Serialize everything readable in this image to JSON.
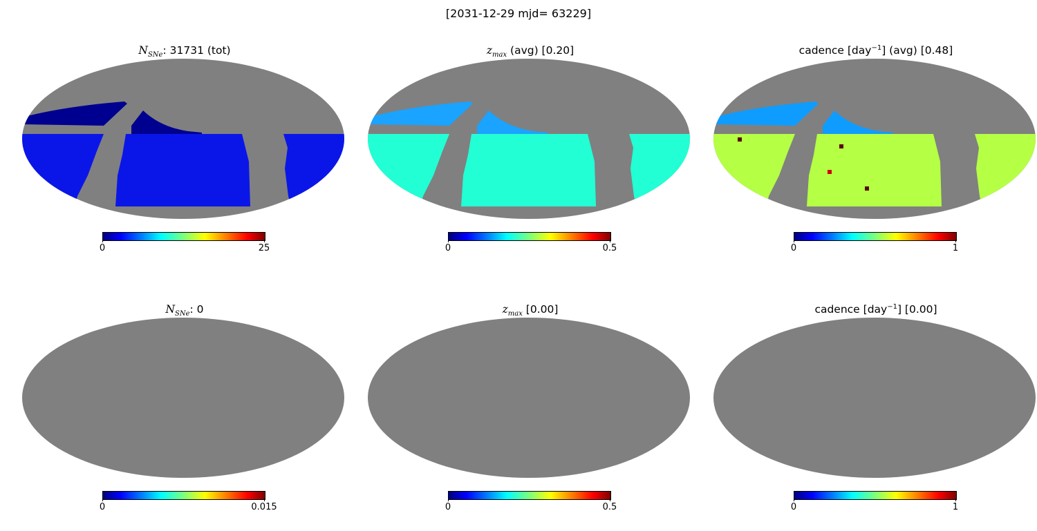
{
  "figure": {
    "suptitle": "[2031-12-29  mjd= 63229]"
  },
  "panels": [
    {
      "id": "nsn_tot",
      "title_main": "N",
      "title_sub": "SNe",
      "title_rest": ": 31731 (tot)",
      "cmin": "0",
      "cmax": "25",
      "has_data": true
    },
    {
      "id": "zmax_avg",
      "title_main": "z",
      "title_sub": "max",
      "title_rest": " (avg) [0.20]",
      "cmin": "0",
      "cmax": "0.5",
      "has_data": true
    },
    {
      "id": "cadence_avg",
      "title_pre": "cadence [day",
      "title_sup": "−1",
      "title_rest": "] (avg) [0.48]",
      "cmin": "0",
      "cmax": "1",
      "has_data": true
    },
    {
      "id": "nsn",
      "title_main": "N",
      "title_sub": "SNe",
      "title_rest": ": 0",
      "cmin": "0",
      "cmax": "0.015",
      "has_data": false
    },
    {
      "id": "zmax",
      "title_main": "z",
      "title_sub": "max",
      "title_rest": " [0.00]",
      "cmin": "0",
      "cmax": "0.5",
      "has_data": false
    },
    {
      "id": "cadence",
      "title_pre": "cadence [day",
      "title_sup": "−1",
      "title_rest": "] [0.00]",
      "cmin": "0",
      "cmax": "1",
      "has_data": false
    }
  ],
  "chart_data": [
    {
      "type": "heatmap",
      "projection": "mollweide",
      "title": "N_SNe: 31731 (tot)",
      "colorbar_range": [
        0,
        25
      ],
      "colormap": "jet",
      "background_color": "#808080",
      "dominant_values": {
        "north_strip": 1,
        "main_region": 3
      }
    },
    {
      "type": "heatmap",
      "projection": "mollweide",
      "title": "z_max (avg) [0.20]",
      "colorbar_range": [
        0,
        0.5
      ],
      "colormap": "jet",
      "background_color": "#808080",
      "dominant_values": {
        "north_strip": 0.14,
        "main_region": 0.2
      }
    },
    {
      "type": "heatmap",
      "projection": "mollweide",
      "title": "cadence [day^-1] (avg) [0.48]",
      "colorbar_range": [
        0,
        1
      ],
      "colormap": "jet",
      "background_color": "#808080",
      "dominant_values": {
        "north_strip": 0.3,
        "main_region": 0.55
      }
    },
    {
      "type": "heatmap",
      "projection": "mollweide",
      "title": "N_SNe: 0",
      "colorbar_range": [
        0,
        0.015
      ],
      "colormap": "jet",
      "background_color": "#808080",
      "dominant_values": {}
    },
    {
      "type": "heatmap",
      "projection": "mollweide",
      "title": "z_max [0.00]",
      "colorbar_range": [
        0,
        0.5
      ],
      "colormap": "jet",
      "background_color": "#808080",
      "dominant_values": {}
    },
    {
      "type": "heatmap",
      "projection": "mollweide",
      "title": "cadence [day^-1] [0.00]",
      "colorbar_range": [
        0,
        1
      ],
      "colormap": "jet",
      "background_color": "#808080",
      "dominant_values": {}
    }
  ],
  "colors": {
    "sky_masked": "#808080",
    "nsn_strip": "#000090",
    "nsn_main": "#0a16e8",
    "zmax_strip": "#1aa3ff",
    "zmax_main": "#22ffd5",
    "cad_strip": "#0f9cff",
    "cad_main": "#b5ff45"
  }
}
